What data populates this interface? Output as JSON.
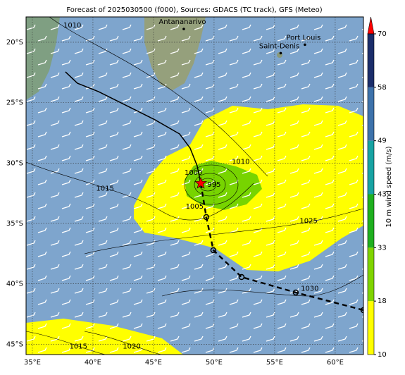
{
  "map": {
    "title": "Forecast of 2025030500 (f000), Sources: GDACS (TC track), GFS (Meteo)",
    "xlim": [
      34.48,
      62.33
    ],
    "ylim": [
      -17.9,
      -45.86
    ],
    "xticks": [
      {
        "value": 35,
        "label": "35°E"
      },
      {
        "value": 40,
        "label": "40°E"
      },
      {
        "value": 45,
        "label": "45°E"
      },
      {
        "value": 50,
        "label": "50°E"
      },
      {
        "value": 55,
        "label": "55°E"
      },
      {
        "value": 60,
        "label": "60°E"
      }
    ],
    "yticks": [
      {
        "value": -20,
        "label": "20°S"
      },
      {
        "value": -25,
        "label": "25°S"
      },
      {
        "value": -30,
        "label": "30°S"
      },
      {
        "value": -35,
        "label": "35°S"
      },
      {
        "value": -40,
        "label": "40°S"
      },
      {
        "value": -45,
        "label": "45°S"
      }
    ],
    "grid": true,
    "cities": [
      {
        "name": "Antananarivo",
        "lon": 47.5,
        "lat": -18.9
      },
      {
        "name": "Saint-Denis",
        "lon": 55.5,
        "lat": -20.9
      },
      {
        "name": "Port Louis",
        "lon": 57.5,
        "lat": -20.2
      }
    ],
    "past_track": {
      "color": "#000000",
      "lon": [
        37.73,
        38.72,
        40.47,
        42.79,
        45.12,
        47.15,
        48.02,
        48.6,
        48.9
      ],
      "lat": [
        -22.45,
        -23.39,
        -24.09,
        -25.25,
        -26.42,
        -27.59,
        -28.76,
        -30.22,
        -31.68
      ]
    },
    "forecast_track": {
      "color": "#000000",
      "lon": [
        48.9,
        49.36,
        49.94,
        52.27,
        56.74,
        62.33
      ],
      "lat": [
        -31.68,
        -34.48,
        -37.22,
        -39.44,
        -40.72,
        -42.18
      ]
    },
    "current_position": {
      "lon": 48.9,
      "lat": -31.68,
      "color": "#ff0000"
    },
    "isobar_labels": [
      {
        "value": 1010,
        "lon": 38.3,
        "lat": -18.6
      },
      {
        "value": 1010,
        "lon": 52.2,
        "lat": -29.9
      },
      {
        "value": 1015,
        "lon": 41.0,
        "lat": -32.1
      },
      {
        "value": 1000,
        "lon": 48.3,
        "lat": -30.8
      },
      {
        "value": 995,
        "lon": 50.0,
        "lat": -31.8
      },
      {
        "value": 1005,
        "lon": 48.4,
        "lat": -33.6
      },
      {
        "value": 1025,
        "lon": 57.8,
        "lat": -34.8
      },
      {
        "value": 1030,
        "lon": 57.9,
        "lat": -40.4
      },
      {
        "value": 1015,
        "lon": 38.8,
        "lat": -45.2
      },
      {
        "value": 1020,
        "lon": 43.2,
        "lat": -45.2
      }
    ],
    "colorbar": {
      "label": "10 m wind speed (m/s)",
      "ticks": [
        10,
        18,
        33,
        43,
        49,
        58,
        70
      ],
      "colors": [
        "#ffff00",
        "#80d400",
        "#1fb01f",
        "#18a3a3",
        "#3d72ab",
        "#1b2d6b"
      ],
      "extend_color": "#ff0000"
    }
  }
}
